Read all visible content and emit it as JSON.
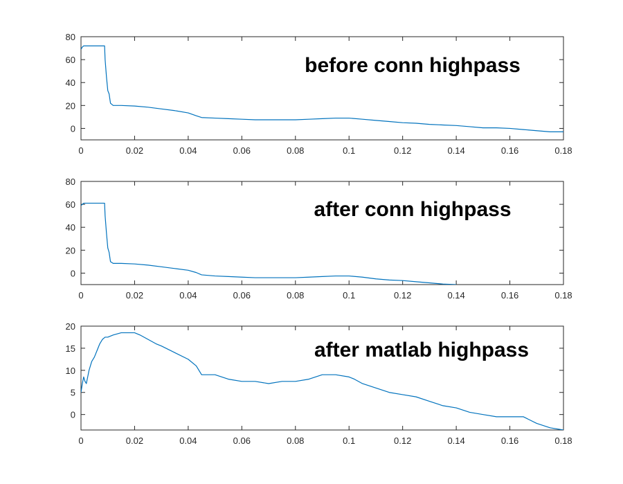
{
  "figure": {
    "background": "#ffffff",
    "line_color": "#0072BD",
    "axis_color": "#262626"
  },
  "chart_data": [
    {
      "type": "line",
      "title": "",
      "xlabel": "",
      "ylabel": "",
      "annotation": "before conn highpass",
      "xlim": [
        0,
        0.18
      ],
      "ylim": [
        -10,
        80
      ],
      "xticks": [
        0,
        0.02,
        0.04,
        0.06,
        0.08,
        0.1,
        0.12,
        0.14,
        0.16,
        0.18
      ],
      "xtick_labels": [
        "0",
        "0.02",
        "0.04",
        "0.06",
        "0.08",
        "0.1",
        "0.12",
        "0.14",
        "0.16",
        "0.18"
      ],
      "yticks": [
        0,
        20,
        40,
        60,
        80
      ],
      "ytick_labels": [
        "0",
        "20",
        "40",
        "60",
        "80"
      ],
      "grid": false,
      "series": [
        {
          "x": [
            0,
            0.0005,
            0.001,
            0.002,
            0.004,
            0.006,
            0.008,
            0.0088,
            0.009,
            0.0095,
            0.01,
            0.0105,
            0.011,
            0.012,
            0.015,
            0.02,
            0.025,
            0.03,
            0.035,
            0.04,
            0.043,
            0.045,
            0.05,
            0.055,
            0.06,
            0.065,
            0.07,
            0.075,
            0.08,
            0.085,
            0.09,
            0.095,
            0.1,
            0.105,
            0.11,
            0.115,
            0.12,
            0.125,
            0.13,
            0.135,
            0.14,
            0.145,
            0.15,
            0.155,
            0.16,
            0.165,
            0.17,
            0.175,
            0.18
          ],
          "y": [
            69,
            71,
            72,
            72,
            72,
            72,
            72,
            72,
            60,
            45,
            33,
            30,
            22,
            20,
            20,
            19.5,
            18.5,
            17,
            15.5,
            13.5,
            11,
            9.5,
            9,
            8.5,
            8,
            7.5,
            7.5,
            7.5,
            7.5,
            8,
            8.5,
            9,
            9,
            8,
            7,
            6,
            5,
            4.5,
            3.5,
            3,
            2.5,
            1.5,
            0.5,
            0.5,
            0,
            -1,
            -2,
            -3,
            -3
          ]
        }
      ]
    },
    {
      "type": "line",
      "title": "",
      "xlabel": "",
      "ylabel": "",
      "annotation": "after conn highpass",
      "xlim": [
        0,
        0.18
      ],
      "ylim": [
        -10,
        80
      ],
      "xticks": [
        0,
        0.02,
        0.04,
        0.06,
        0.08,
        0.1,
        0.12,
        0.14,
        0.16,
        0.18
      ],
      "xtick_labels": [
        "0",
        "0.02",
        "0.04",
        "0.06",
        "0.08",
        "0.1",
        "0.12",
        "0.14",
        "0.16",
        "0.18"
      ],
      "yticks": [
        0,
        20,
        40,
        60,
        80
      ],
      "ytick_labels": [
        "0",
        "20",
        "40",
        "60",
        "80"
      ],
      "grid": false,
      "series": [
        {
          "x": [
            0,
            0.0005,
            0.001,
            0.002,
            0.004,
            0.006,
            0.008,
            0.0088,
            0.009,
            0.0095,
            0.01,
            0.0105,
            0.011,
            0.012,
            0.015,
            0.02,
            0.025,
            0.03,
            0.035,
            0.04,
            0.043,
            0.045,
            0.05,
            0.055,
            0.06,
            0.065,
            0.07,
            0.075,
            0.08,
            0.085,
            0.09,
            0.095,
            0.1,
            0.105,
            0.11,
            0.115,
            0.12,
            0.125,
            0.13,
            0.135,
            0.14
          ],
          "y": [
            59,
            60,
            61,
            61,
            61,
            61,
            61,
            61,
            50,
            35,
            22,
            18,
            10,
            8.5,
            8.5,
            8,
            7,
            5.5,
            4,
            2.5,
            0.5,
            -1.5,
            -2.5,
            -3,
            -3.5,
            -4,
            -4,
            -4,
            -4,
            -3.5,
            -3,
            -2.5,
            -2.5,
            -3.5,
            -5,
            -6,
            -6.5,
            -7.5,
            -8.5,
            -9.5,
            -10
          ]
        }
      ]
    },
    {
      "type": "line",
      "title": "",
      "xlabel": "",
      "ylabel": "",
      "annotation": "after matlab highpass",
      "xlim": [
        0,
        0.18
      ],
      "ylim": [
        -3.5,
        20
      ],
      "xticks": [
        0,
        0.02,
        0.04,
        0.06,
        0.08,
        0.1,
        0.12,
        0.14,
        0.16,
        0.18
      ],
      "xtick_labels": [
        "0",
        "0.02",
        "0.04",
        "0.06",
        "0.08",
        "0.1",
        "0.12",
        "0.14",
        "0.16",
        "0.18"
      ],
      "yticks": [
        0,
        5,
        10,
        15,
        20
      ],
      "ytick_labels": [
        "0",
        "5",
        "10",
        "15",
        "20"
      ],
      "grid": false,
      "series": [
        {
          "x": [
            0,
            0.0005,
            0.001,
            0.0015,
            0.002,
            0.003,
            0.004,
            0.005,
            0.006,
            0.007,
            0.008,
            0.009,
            0.01,
            0.012,
            0.015,
            0.018,
            0.02,
            0.022,
            0.025,
            0.028,
            0.03,
            0.035,
            0.04,
            0.043,
            0.045,
            0.048,
            0.05,
            0.055,
            0.06,
            0.065,
            0.07,
            0.075,
            0.08,
            0.085,
            0.09,
            0.095,
            0.1,
            0.102,
            0.105,
            0.11,
            0.115,
            0.12,
            0.125,
            0.13,
            0.135,
            0.14,
            0.145,
            0.15,
            0.155,
            0.16,
            0.162,
            0.165,
            0.17,
            0.175,
            0.18
          ],
          "y": [
            5,
            7,
            8.5,
            7.5,
            7,
            10,
            12,
            13,
            14.5,
            16,
            17,
            17.5,
            17.5,
            18,
            18.5,
            18.5,
            18.5,
            18,
            17,
            16,
            15.5,
            14,
            12.5,
            11,
            9,
            9,
            9,
            8,
            7.5,
            7.5,
            7,
            7.5,
            7.5,
            8,
            9,
            9,
            8.5,
            8,
            7,
            6,
            5,
            4.5,
            4,
            3,
            2,
            1.5,
            0.5,
            0,
            -0.5,
            -0.5,
            -0.5,
            -0.5,
            -2,
            -3,
            -3.5
          ]
        }
      ]
    }
  ]
}
